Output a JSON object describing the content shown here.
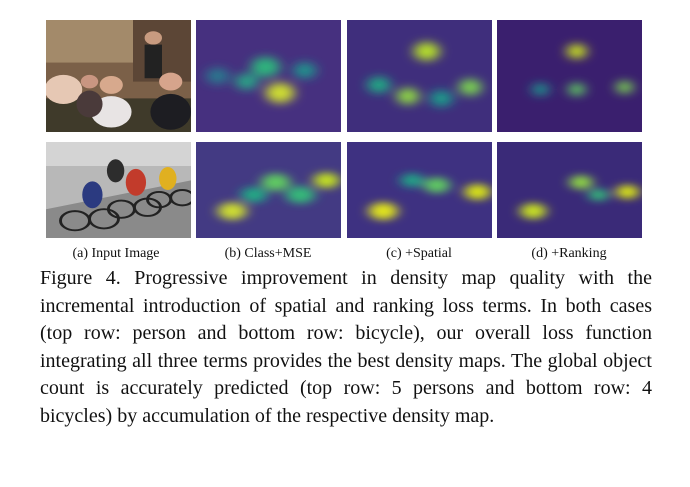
{
  "panels": {
    "row1": [
      {
        "name": "input-image-persons"
      },
      {
        "name": "density-map-class-mse-persons",
        "base": "#46307f",
        "blobs": [
          [
            0.48,
            0.42,
            0.1,
            "#2db27d"
          ],
          [
            0.35,
            0.55,
            0.08,
            "#29a386"
          ],
          [
            0.58,
            0.65,
            0.1,
            "#cddc33"
          ],
          [
            0.75,
            0.45,
            0.08,
            "#21918c"
          ],
          [
            0.15,
            0.5,
            0.08,
            "#2a788e"
          ]
        ]
      },
      {
        "name": "density-map-spatial-persons",
        "base": "#3f2e7c",
        "blobs": [
          [
            0.55,
            0.28,
            0.09,
            "#b5de2b"
          ],
          [
            0.42,
            0.68,
            0.08,
            "#8ed645"
          ],
          [
            0.85,
            0.6,
            0.08,
            "#7ad151"
          ],
          [
            0.22,
            0.58,
            0.08,
            "#22a884"
          ],
          [
            0.65,
            0.7,
            0.08,
            "#1f9a8a"
          ]
        ]
      },
      {
        "name": "density-map-ranking-persons",
        "base": "#3a1f6e",
        "blobs": [
          [
            0.55,
            0.28,
            0.07,
            "#c8e020"
          ],
          [
            0.55,
            0.62,
            0.06,
            "#5ec962"
          ],
          [
            0.88,
            0.6,
            0.06,
            "#7ad151"
          ],
          [
            0.3,
            0.62,
            0.06,
            "#21918c"
          ]
        ]
      }
    ],
    "row2": [
      {
        "name": "input-image-bicycles"
      },
      {
        "name": "density-map-class-mse-bicycles",
        "base": "#433a83",
        "blobs": [
          [
            0.25,
            0.72,
            0.1,
            "#cddc33"
          ],
          [
            0.55,
            0.42,
            0.1,
            "#5ec962"
          ],
          [
            0.9,
            0.4,
            0.09,
            "#c2df23"
          ],
          [
            0.72,
            0.55,
            0.1,
            "#35b779"
          ],
          [
            0.4,
            0.55,
            0.09,
            "#22a884"
          ]
        ]
      },
      {
        "name": "density-map-spatial-bicycles",
        "base": "#3e3181",
        "blobs": [
          [
            0.25,
            0.72,
            0.1,
            "#e0e31d"
          ],
          [
            0.62,
            0.45,
            0.09,
            "#5ec962"
          ],
          [
            0.9,
            0.52,
            0.09,
            "#d8e219"
          ],
          [
            0.45,
            0.4,
            0.08,
            "#20a386"
          ]
        ]
      },
      {
        "name": "density-map-ranking-bicycles",
        "base": "#3a2a78",
        "blobs": [
          [
            0.25,
            0.72,
            0.09,
            "#c8e020"
          ],
          [
            0.58,
            0.42,
            0.08,
            "#8ed645"
          ],
          [
            0.9,
            0.52,
            0.08,
            "#d8e219"
          ],
          [
            0.7,
            0.55,
            0.07,
            "#35b779"
          ]
        ]
      }
    ]
  },
  "labels": [
    "(a) Input Image",
    "(b) Class+MSE",
    "(c) +Spatial",
    "(d) +Ranking"
  ],
  "caption": "Figure 4. Progressive improvement in density map quality with the incremental introduction of spatial and ranking loss terms. In both cases (top row: person and bottom row: bicycle), our overall loss function integrating all three terms provides the best density maps. The global object count is accurately predicted (top row: 5 persons and bottom row: 4 bicycles) by accumulation of the respective density map."
}
